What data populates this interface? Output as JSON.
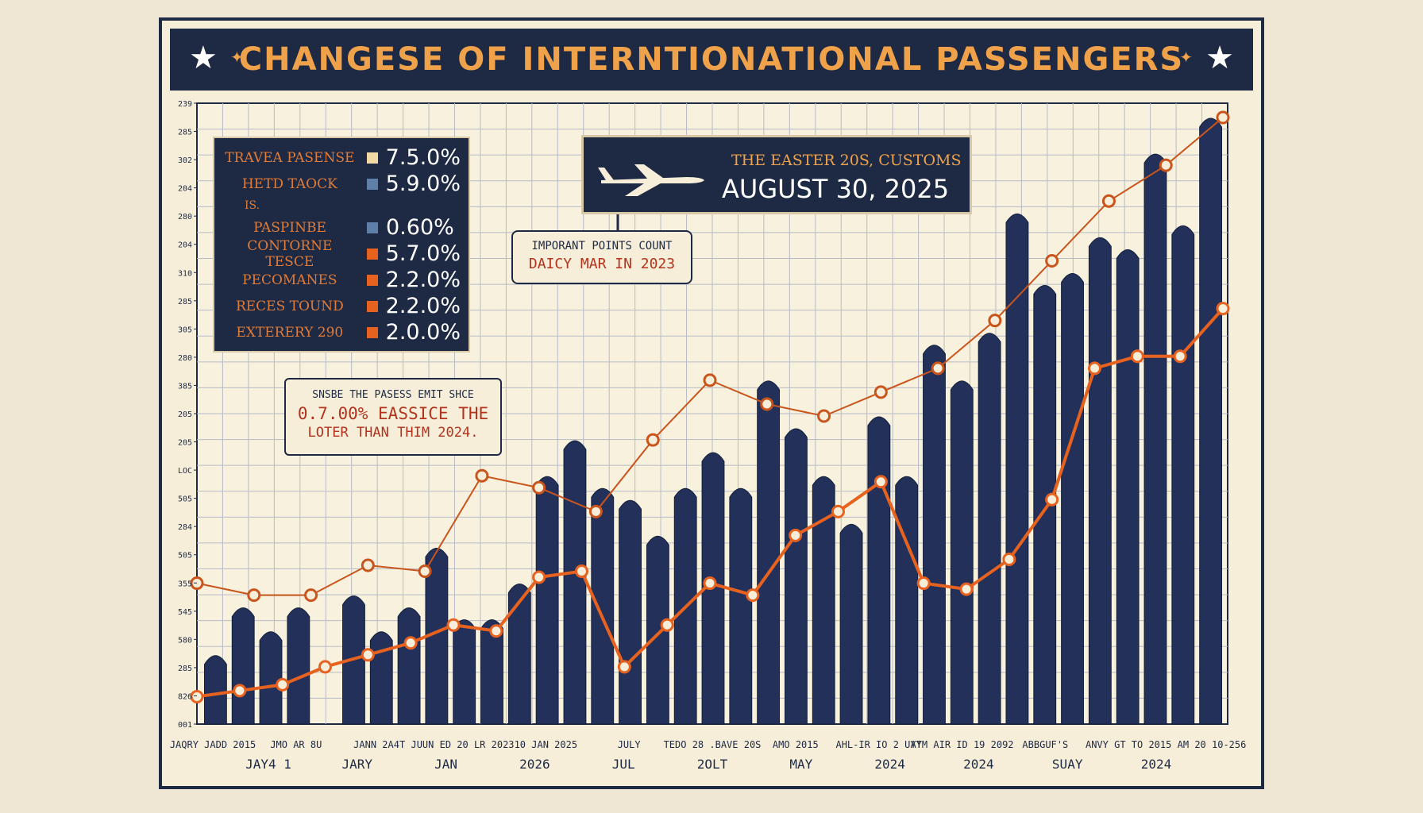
{
  "chart_data": {
    "type": "bar",
    "title": "CHANGESE OF INTERNTIONATIONAL PASSENGERS",
    "y_tick_labels": [
      "239",
      "285",
      "302",
      "204",
      "280",
      "204",
      "310",
      "285",
      "305",
      "280",
      "385",
      "205",
      "205",
      "LOC",
      "505",
      "284",
      "505",
      "355",
      "545",
      "580",
      "285",
      "826",
      "001"
    ],
    "x_tick_labels": [
      "JAQRY JADD 2015",
      "JMO AR 8U",
      "JANN 2A4T",
      "JUUN ED 20 LR 2023",
      "10 JAN 2025",
      "JULY",
      "TEDO 28 .BAVE 20S",
      "AMO 2015",
      "AHL-IR IO 2 UYT",
      "AYM AIR ID 19 2092",
      "ABBGUF'S",
      "ANVY GT TO 2015",
      "AM 20 10-256"
    ],
    "x_sub_labels": [
      "JAY4 1",
      "JARY",
      "JAN",
      "2026",
      "JUL",
      "2OLT",
      "MAY",
      "2024",
      "2024",
      "SUAY",
      "2024"
    ],
    "ylim": [
      0,
      100
    ],
    "series": [
      {
        "values": [
          10,
          18,
          14,
          18,
          0,
          20,
          14,
          18,
          28,
          16,
          16,
          22,
          40,
          46,
          38,
          36,
          30,
          38,
          44,
          38,
          56,
          48,
          40,
          32,
          50,
          40,
          62,
          56,
          64,
          84,
          72,
          74,
          80,
          78,
          94,
          82,
          100
        ]
      }
    ],
    "lines": [
      {
        "color": "#e8621f",
        "values": [
          3,
          4,
          5,
          8,
          10,
          12,
          15,
          14,
          23,
          24,
          8,
          15,
          22,
          20,
          30,
          34,
          39,
          22,
          21,
          26,
          36,
          58,
          60,
          60,
          68
        ]
      },
      {
        "color": "#c9551d",
        "values": [
          22,
          20,
          20,
          25,
          24,
          40,
          38,
          34,
          46,
          56,
          52,
          50,
          54,
          58,
          66,
          76,
          86,
          92,
          100
        ]
      }
    ]
  },
  "legend": {
    "rows": [
      {
        "label": "TRAVEA PASENSE",
        "value": "7.5.0%",
        "color": "#f1d9a6"
      },
      {
        "label": "HETD TAOCK",
        "value": "5.9.0%",
        "color": "#5d7fa8"
      },
      {
        "label": "IS.",
        "value": "",
        "color": ""
      },
      {
        "label": "PASPINBE",
        "value": "0.60%",
        "color": "#5d7fa8"
      },
      {
        "label": "CONTORNE TESCE",
        "value": "5.7.0%",
        "color": "#e8621f"
      },
      {
        "label": "PECOMANES",
        "value": "2.2.0%",
        "color": "#e8621f"
      },
      {
        "label": "RECES TOUND",
        "value": "2.2.0%",
        "color": "#e8621f"
      },
      {
        "label": "EXTERERY 290",
        "value": "2.0.0%",
        "color": "#e8621f"
      }
    ]
  },
  "date_box": {
    "subtitle": "THE EASTER 20S, CUSTOMS",
    "date": "AUGUST 30, 2025"
  },
  "note_box": {
    "line1": "IMPORANT POINTS COUNT",
    "line2": "DAICY MAR IN 2023"
  },
  "callout_box": {
    "line1": "SNSBE THE PASESS EMIT SHCE",
    "line2": "0.7.00% EASSICE THE",
    "line3": "LOTER THAN THIM 2024."
  },
  "colors": {
    "navy": "#1e2a44",
    "orange": "#e8621f",
    "cream": "#f6eed9"
  }
}
